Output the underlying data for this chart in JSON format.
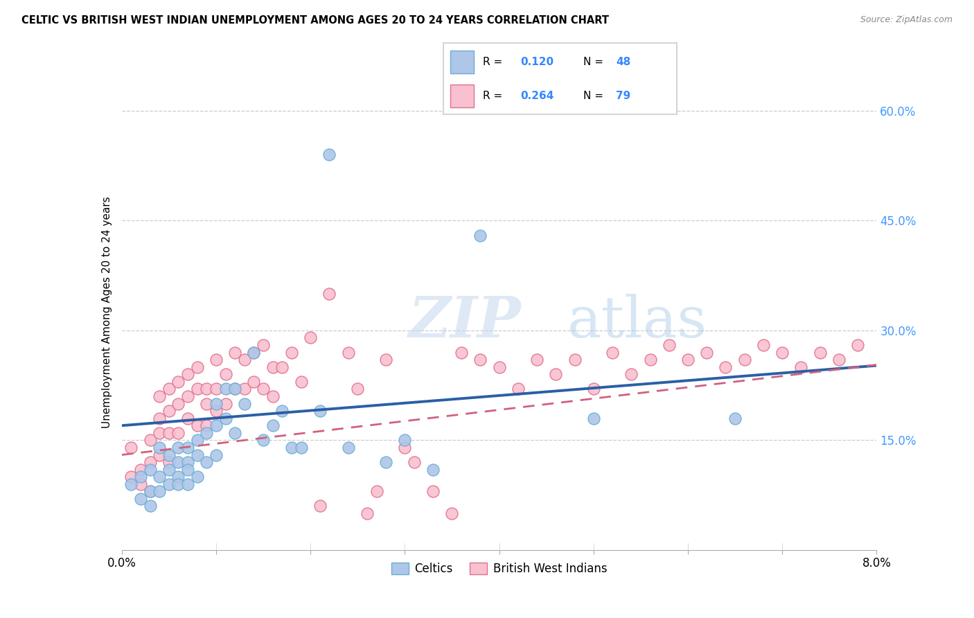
{
  "title": "CELTIC VS BRITISH WEST INDIAN UNEMPLOYMENT AMONG AGES 20 TO 24 YEARS CORRELATION CHART",
  "source": "Source: ZipAtlas.com",
  "ylabel": "Unemployment Among Ages 20 to 24 years",
  "right_yticks": [
    0.15,
    0.3,
    0.45,
    0.6
  ],
  "right_yticklabels": [
    "15.0%",
    "30.0%",
    "45.0%",
    "60.0%"
  ],
  "xmin": 0.0,
  "xmax": 0.08,
  "ymin": 0.0,
  "ymax": 0.65,
  "celtics_R": 0.12,
  "celtics_N": 48,
  "bwi_R": 0.264,
  "bwi_N": 79,
  "celtics_color": "#aec6e8",
  "celtics_edge": "#6baed6",
  "bwi_color": "#f9c0cf",
  "bwi_edge": "#e07090",
  "trend_celtics_color": "#2b5fa5",
  "trend_bwi_color": "#d06080",
  "watermark_color": "#c8ddf0",
  "celtics_x": [
    0.001,
    0.002,
    0.002,
    0.003,
    0.003,
    0.003,
    0.004,
    0.004,
    0.004,
    0.005,
    0.005,
    0.005,
    0.006,
    0.006,
    0.006,
    0.006,
    0.007,
    0.007,
    0.007,
    0.007,
    0.008,
    0.008,
    0.008,
    0.009,
    0.009,
    0.01,
    0.01,
    0.01,
    0.011,
    0.011,
    0.012,
    0.012,
    0.013,
    0.014,
    0.015,
    0.016,
    0.017,
    0.018,
    0.019,
    0.021,
    0.022,
    0.024,
    0.028,
    0.03,
    0.033,
    0.038,
    0.05,
    0.065
  ],
  "celtics_y": [
    0.09,
    0.1,
    0.07,
    0.11,
    0.08,
    0.06,
    0.1,
    0.08,
    0.14,
    0.13,
    0.11,
    0.09,
    0.14,
    0.12,
    0.1,
    0.09,
    0.14,
    0.12,
    0.11,
    0.09,
    0.15,
    0.13,
    0.1,
    0.16,
    0.12,
    0.2,
    0.17,
    0.13,
    0.22,
    0.18,
    0.22,
    0.16,
    0.2,
    0.27,
    0.15,
    0.17,
    0.19,
    0.14,
    0.14,
    0.19,
    0.54,
    0.14,
    0.12,
    0.15,
    0.11,
    0.43,
    0.18,
    0.18
  ],
  "bwi_x": [
    0.001,
    0.001,
    0.002,
    0.002,
    0.003,
    0.003,
    0.003,
    0.004,
    0.004,
    0.004,
    0.004,
    0.005,
    0.005,
    0.005,
    0.005,
    0.006,
    0.006,
    0.006,
    0.007,
    0.007,
    0.007,
    0.008,
    0.008,
    0.008,
    0.009,
    0.009,
    0.009,
    0.01,
    0.01,
    0.01,
    0.011,
    0.011,
    0.012,
    0.012,
    0.013,
    0.013,
    0.014,
    0.014,
    0.015,
    0.015,
    0.016,
    0.016,
    0.017,
    0.018,
    0.019,
    0.02,
    0.021,
    0.022,
    0.024,
    0.025,
    0.026,
    0.027,
    0.028,
    0.03,
    0.031,
    0.033,
    0.035,
    0.036,
    0.038,
    0.04,
    0.042,
    0.044,
    0.046,
    0.048,
    0.05,
    0.052,
    0.054,
    0.056,
    0.058,
    0.06,
    0.062,
    0.064,
    0.066,
    0.068,
    0.07,
    0.072,
    0.074,
    0.076,
    0.078
  ],
  "bwi_y": [
    0.1,
    0.14,
    0.11,
    0.09,
    0.15,
    0.12,
    0.08,
    0.18,
    0.21,
    0.16,
    0.13,
    0.22,
    0.19,
    0.16,
    0.12,
    0.23,
    0.2,
    0.16,
    0.24,
    0.21,
    0.18,
    0.25,
    0.22,
    0.17,
    0.22,
    0.2,
    0.17,
    0.26,
    0.22,
    0.19,
    0.24,
    0.2,
    0.27,
    0.22,
    0.26,
    0.22,
    0.27,
    0.23,
    0.28,
    0.22,
    0.25,
    0.21,
    0.25,
    0.27,
    0.23,
    0.29,
    0.06,
    0.35,
    0.27,
    0.22,
    0.05,
    0.08,
    0.26,
    0.14,
    0.12,
    0.08,
    0.05,
    0.27,
    0.26,
    0.25,
    0.22,
    0.26,
    0.24,
    0.26,
    0.22,
    0.27,
    0.24,
    0.26,
    0.28,
    0.26,
    0.27,
    0.25,
    0.26,
    0.28,
    0.27,
    0.25,
    0.27,
    0.26,
    0.28
  ],
  "trend_celtics_x0": 0.0,
  "trend_celtics_y0": 0.17,
  "trend_celtics_x1": 0.08,
  "trend_celtics_y1": 0.252,
  "trend_bwi_x0": 0.0,
  "trend_bwi_y0": 0.13,
  "trend_bwi_x1": 0.08,
  "trend_bwi_y1": 0.253
}
